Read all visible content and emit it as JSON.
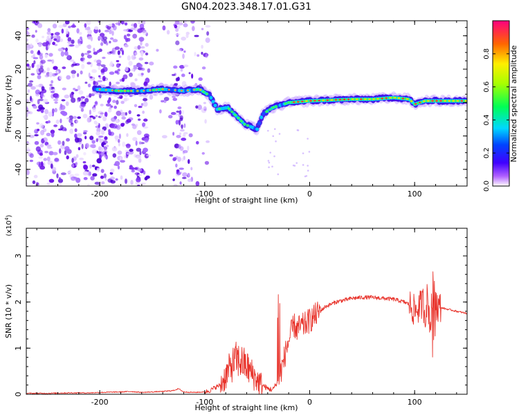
{
  "title": "GN04.2023.348.17.01.G31",
  "chart_data": [
    {
      "type": "heatmap",
      "xlabel": "Height of straight line (km)",
      "ylabel": "Frequency (Hz)",
      "xlim": [
        -270,
        150
      ],
      "ylim": [
        -50,
        49
      ],
      "xticks": [
        -200,
        -100,
        0,
        100
      ],
      "yticks": [
        -40,
        -20,
        0,
        20,
        40
      ],
      "colorbar": {
        "label": "Normalized spectral amplitude",
        "range": [
          0,
          1
        ],
        "ticks": [
          0.0,
          0.2,
          0.4,
          0.6,
          0.8
        ]
      },
      "ridge": [
        {
          "x": -205,
          "y": 8
        },
        {
          "x": -180,
          "y": 7
        },
        {
          "x": -160,
          "y": 7
        },
        {
          "x": -140,
          "y": 8
        },
        {
          "x": -120,
          "y": 7
        },
        {
          "x": -105,
          "y": 8
        },
        {
          "x": -95,
          "y": 4
        },
        {
          "x": -88,
          "y": -4
        },
        {
          "x": -78,
          "y": -3
        },
        {
          "x": -70,
          "y": -8
        },
        {
          "x": -62,
          "y": -13
        },
        {
          "x": -50,
          "y": -16
        },
        {
          "x": -45,
          "y": -7
        },
        {
          "x": -35,
          "y": -3
        },
        {
          "x": -20,
          "y": 0
        },
        {
          "x": 0,
          "y": 1
        },
        {
          "x": 40,
          "y": 2
        },
        {
          "x": 60,
          "y": 2
        },
        {
          "x": 80,
          "y": 3
        },
        {
          "x": 95,
          "y": 2
        },
        {
          "x": 100,
          "y": -1
        },
        {
          "x": 110,
          "y": 1
        },
        {
          "x": 150,
          "y": 1
        }
      ]
    },
    {
      "type": "line",
      "xlabel": "Height of straight line (km)",
      "ylabel": "SNR (10 * v/v)",
      "yscale_label": "(x10",
      "yscale_exp": "4",
      "yscale_close": ")",
      "xlim": [
        -270,
        150
      ],
      "ylim": [
        0,
        3.6
      ],
      "xticks": [
        -200,
        -100,
        0,
        100
      ],
      "yticks": [
        0,
        1,
        2,
        3
      ],
      "color": "#e8332b",
      "series": [
        {
          "x": [
            -270,
            -250,
            -230,
            -210,
            -200,
            -180,
            -170,
            -160,
            -140,
            -130,
            -125,
            -120,
            -110,
            -100,
            -95,
            -90,
            -85,
            -80,
            -75,
            -70,
            -65,
            -60,
            -55,
            -50,
            -45,
            -40,
            -35,
            -30,
            -25,
            -22,
            -18,
            -15,
            -12,
            -10,
            -5,
            0,
            5,
            10,
            15,
            20,
            25,
            30,
            35,
            40,
            50,
            60,
            70,
            80,
            90,
            95,
            100,
            105,
            108,
            110,
            112,
            115,
            118,
            120,
            122,
            125,
            130,
            140,
            150
          ],
          "y": [
            0.02,
            0.02,
            0.03,
            0.03,
            0.04,
            0.05,
            0.06,
            0.04,
            0.06,
            0.08,
            0.12,
            0.05,
            0.04,
            0.05,
            0.08,
            0.15,
            0.2,
            0.4,
            0.6,
            0.75,
            0.7,
            0.6,
            0.45,
            0.3,
            0.2,
            0.12,
            0.1,
            0.3,
            0.7,
            1.0,
            1.3,
            1.5,
            1.4,
            1.45,
            1.5,
            1.6,
            1.7,
            1.8,
            1.9,
            1.95,
            2.0,
            2.03,
            2.05,
            2.08,
            2.1,
            2.1,
            2.08,
            2.06,
            2.0,
            1.95,
            1.8,
            1.9,
            2.0,
            1.7,
            2.1,
            1.5,
            2.5,
            2.0,
            1.9,
            1.88,
            1.85,
            1.8,
            1.75
          ]
        }
      ]
    }
  ]
}
